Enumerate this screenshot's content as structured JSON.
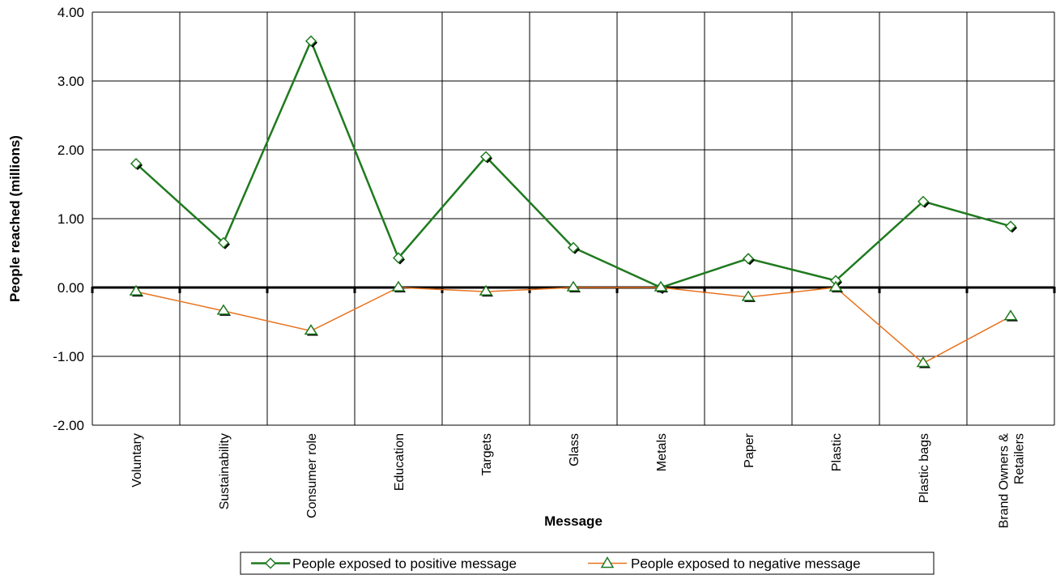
{
  "chart_data": {
    "type": "line",
    "title": "",
    "xlabel": "Message",
    "ylabel": "People reached (millions)",
    "ylim": [
      -2,
      4
    ],
    "yticks": [
      "4.00",
      "3.00",
      "2.00",
      "1.00",
      "0.00",
      "-1.00",
      "-2.00"
    ],
    "ytick_values": [
      4,
      3,
      2,
      1,
      0,
      -1,
      -2
    ],
    "grid": true,
    "legend_position": "bottom",
    "categories": [
      [
        "Voluntary"
      ],
      [
        "Sustainability"
      ],
      [
        "Consumer role"
      ],
      [
        "Education"
      ],
      [
        "Targets"
      ],
      [
        "Glass"
      ],
      [
        "Metals"
      ],
      [
        "Paper"
      ],
      [
        "Plastic"
      ],
      [
        "Plastic bags"
      ],
      [
        "Brand Owners &",
        "Retailers"
      ]
    ],
    "series": [
      {
        "name": "People exposed to positive message",
        "color": "#1f7a1f",
        "marker": "diamond",
        "values": [
          1.8,
          0.65,
          3.58,
          0.43,
          1.9,
          0.58,
          0.0,
          0.42,
          0.1,
          1.25,
          0.89
        ]
      },
      {
        "name": "People exposed to negative message",
        "color": "#e8731f",
        "marker": "triangle",
        "values": [
          -0.06,
          -0.34,
          -0.63,
          0.0,
          -0.06,
          0.0,
          0.0,
          -0.14,
          0.0,
          -1.1,
          -0.42
        ]
      }
    ]
  }
}
